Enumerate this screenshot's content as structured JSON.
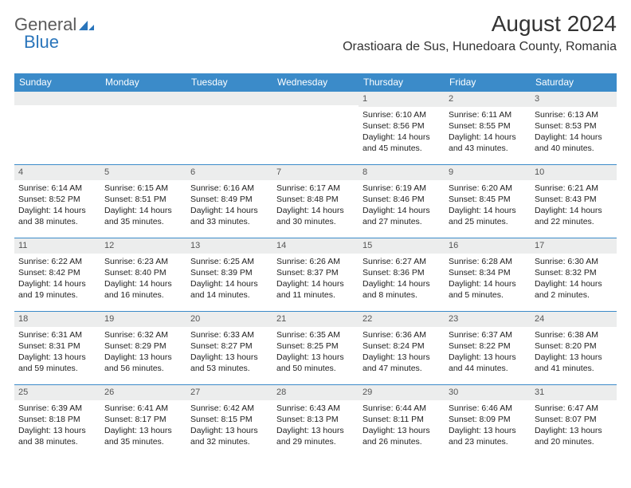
{
  "brand": {
    "part1": "General",
    "part2": "Blue"
  },
  "title": "August 2024",
  "location": "Orastioara de Sus, Hunedoara County, Romania",
  "colors": {
    "header_bg": "#3b8bc9",
    "header_text": "#ffffff",
    "daynum_bg": "#eceded",
    "border_top": "#3b8bc9",
    "body_text": "#222222",
    "brand_gray": "#5a5a5a",
    "brand_blue": "#2a75bb"
  },
  "weekdays": [
    "Sunday",
    "Monday",
    "Tuesday",
    "Wednesday",
    "Thursday",
    "Friday",
    "Saturday"
  ],
  "weeks": [
    [
      null,
      null,
      null,
      null,
      {
        "n": "1",
        "sr": "6:10 AM",
        "ss": "8:56 PM",
        "dl": "14 hours and 45 minutes."
      },
      {
        "n": "2",
        "sr": "6:11 AM",
        "ss": "8:55 PM",
        "dl": "14 hours and 43 minutes."
      },
      {
        "n": "3",
        "sr": "6:13 AM",
        "ss": "8:53 PM",
        "dl": "14 hours and 40 minutes."
      }
    ],
    [
      {
        "n": "4",
        "sr": "6:14 AM",
        "ss": "8:52 PM",
        "dl": "14 hours and 38 minutes."
      },
      {
        "n": "5",
        "sr": "6:15 AM",
        "ss": "8:51 PM",
        "dl": "14 hours and 35 minutes."
      },
      {
        "n": "6",
        "sr": "6:16 AM",
        "ss": "8:49 PM",
        "dl": "14 hours and 33 minutes."
      },
      {
        "n": "7",
        "sr": "6:17 AM",
        "ss": "8:48 PM",
        "dl": "14 hours and 30 minutes."
      },
      {
        "n": "8",
        "sr": "6:19 AM",
        "ss": "8:46 PM",
        "dl": "14 hours and 27 minutes."
      },
      {
        "n": "9",
        "sr": "6:20 AM",
        "ss": "8:45 PM",
        "dl": "14 hours and 25 minutes."
      },
      {
        "n": "10",
        "sr": "6:21 AM",
        "ss": "8:43 PM",
        "dl": "14 hours and 22 minutes."
      }
    ],
    [
      {
        "n": "11",
        "sr": "6:22 AM",
        "ss": "8:42 PM",
        "dl": "14 hours and 19 minutes."
      },
      {
        "n": "12",
        "sr": "6:23 AM",
        "ss": "8:40 PM",
        "dl": "14 hours and 16 minutes."
      },
      {
        "n": "13",
        "sr": "6:25 AM",
        "ss": "8:39 PM",
        "dl": "14 hours and 14 minutes."
      },
      {
        "n": "14",
        "sr": "6:26 AM",
        "ss": "8:37 PM",
        "dl": "14 hours and 11 minutes."
      },
      {
        "n": "15",
        "sr": "6:27 AM",
        "ss": "8:36 PM",
        "dl": "14 hours and 8 minutes."
      },
      {
        "n": "16",
        "sr": "6:28 AM",
        "ss": "8:34 PM",
        "dl": "14 hours and 5 minutes."
      },
      {
        "n": "17",
        "sr": "6:30 AM",
        "ss": "8:32 PM",
        "dl": "14 hours and 2 minutes."
      }
    ],
    [
      {
        "n": "18",
        "sr": "6:31 AM",
        "ss": "8:31 PM",
        "dl": "13 hours and 59 minutes."
      },
      {
        "n": "19",
        "sr": "6:32 AM",
        "ss": "8:29 PM",
        "dl": "13 hours and 56 minutes."
      },
      {
        "n": "20",
        "sr": "6:33 AM",
        "ss": "8:27 PM",
        "dl": "13 hours and 53 minutes."
      },
      {
        "n": "21",
        "sr": "6:35 AM",
        "ss": "8:25 PM",
        "dl": "13 hours and 50 minutes."
      },
      {
        "n": "22",
        "sr": "6:36 AM",
        "ss": "8:24 PM",
        "dl": "13 hours and 47 minutes."
      },
      {
        "n": "23",
        "sr": "6:37 AM",
        "ss": "8:22 PM",
        "dl": "13 hours and 44 minutes."
      },
      {
        "n": "24",
        "sr": "6:38 AM",
        "ss": "8:20 PM",
        "dl": "13 hours and 41 minutes."
      }
    ],
    [
      {
        "n": "25",
        "sr": "6:39 AM",
        "ss": "8:18 PM",
        "dl": "13 hours and 38 minutes."
      },
      {
        "n": "26",
        "sr": "6:41 AM",
        "ss": "8:17 PM",
        "dl": "13 hours and 35 minutes."
      },
      {
        "n": "27",
        "sr": "6:42 AM",
        "ss": "8:15 PM",
        "dl": "13 hours and 32 minutes."
      },
      {
        "n": "28",
        "sr": "6:43 AM",
        "ss": "8:13 PM",
        "dl": "13 hours and 29 minutes."
      },
      {
        "n": "29",
        "sr": "6:44 AM",
        "ss": "8:11 PM",
        "dl": "13 hours and 26 minutes."
      },
      {
        "n": "30",
        "sr": "6:46 AM",
        "ss": "8:09 PM",
        "dl": "13 hours and 23 minutes."
      },
      {
        "n": "31",
        "sr": "6:47 AM",
        "ss": "8:07 PM",
        "dl": "13 hours and 20 minutes."
      }
    ]
  ],
  "labels": {
    "sunrise": "Sunrise: ",
    "sunset": "Sunset: ",
    "daylight": "Daylight: "
  }
}
